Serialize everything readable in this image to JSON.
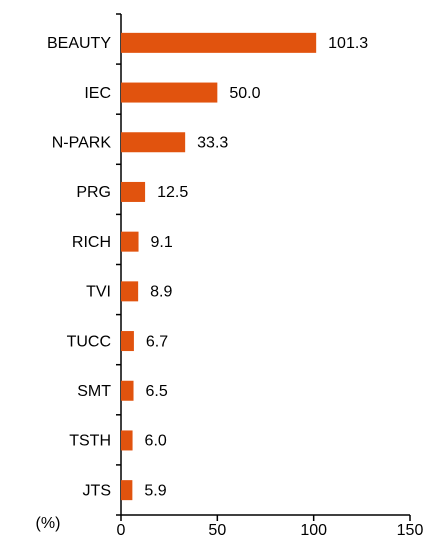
{
  "chart_data": {
    "type": "bar",
    "orientation": "horizontal",
    "x_label": "(%)",
    "categories": [
      "BEAUTY",
      "IEC",
      "N-PARK",
      "PRG",
      "RICH",
      "TVI",
      "TUCC",
      "SMT",
      "TSTH",
      "JTS"
    ],
    "values": [
      101.3,
      50.0,
      33.3,
      12.5,
      9.1,
      8.9,
      6.7,
      6.5,
      6.0,
      5.9
    ],
    "value_labels": [
      "101.3",
      "50.0",
      "33.3",
      "12.5",
      "9.1",
      "8.9",
      "6.7",
      "6.5",
      "6.0",
      "5.9"
    ],
    "color": "#e1530e",
    "xlim": [
      0,
      150
    ],
    "xticks": [
      0,
      50,
      100,
      150
    ],
    "grid": false
  }
}
